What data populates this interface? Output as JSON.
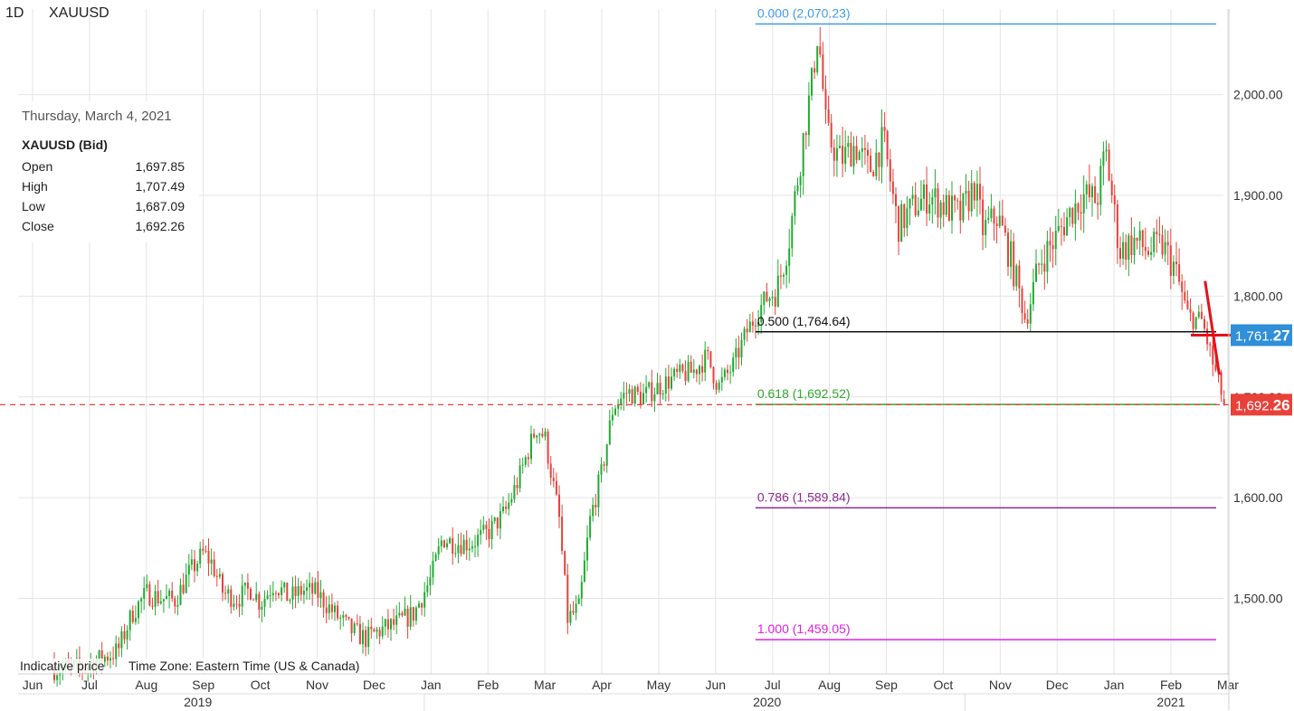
{
  "header": {
    "timeframe": "1D",
    "symbol": "XAUUSD"
  },
  "tooltip": {
    "date": "Thursday, March 4, 2021",
    "symbol": "XAUUSD (Bid)",
    "rows": [
      {
        "label": "Open",
        "value": "1,697.85"
      },
      {
        "label": "High",
        "value": "1,707.49"
      },
      {
        "label": "Low",
        "value": "1,687.09"
      },
      {
        "label": "Close",
        "value": "1,692.26"
      }
    ]
  },
  "footer": {
    "note": "Indicative price",
    "timezone": "Time Zone: Eastern Time (US & Canada)"
  },
  "price_badges": [
    {
      "main": "1,761.",
      "tail": "27",
      "value": 1761.27,
      "color": "#2f8fd8"
    },
    {
      "main": "1,692.",
      "tail": "26",
      "value": 1692.26,
      "color": "#e8413a"
    }
  ],
  "colors": {
    "up": "#22aa33",
    "down": "#e8413a",
    "grid": "#e4e4e4",
    "axis_text": "#333333"
  },
  "chart_data": {
    "type": "candlestick",
    "x_axis": {
      "months": [
        "Jun",
        "Jul",
        "Aug",
        "Sep",
        "Oct",
        "Nov",
        "Dec",
        "Jan",
        "Feb",
        "Mar",
        "Apr",
        "May",
        "Jun",
        "Jul",
        "Aug",
        "Sep",
        "Oct",
        "Nov",
        "Dec",
        "Jan",
        "Feb",
        "Mar"
      ],
      "years": [
        {
          "label": "2019",
          "month_index": 3
        },
        {
          "label": "2020",
          "month_index": 13
        },
        {
          "label": "2021",
          "month_index": 20
        }
      ],
      "range": [
        "2019-06",
        "2021-03"
      ]
    },
    "y_axis": {
      "ticks": [
        "1,500.00",
        "1,600.00",
        "1,700.00",
        "1,800.00",
        "1,900.00",
        "2,000.00"
      ],
      "tick_values": [
        1500,
        1600,
        1700,
        1800,
        1900,
        2000
      ],
      "ylim": [
        1425,
        2085
      ]
    },
    "fib_levels": [
      {
        "ratio": "0.000",
        "label": "0.000 (2,070.23)",
        "value": 2070.23,
        "color": "#3d9be9"
      },
      {
        "ratio": "0.500",
        "label": "0.500 (1,764.64)",
        "value": 1764.64,
        "color": "#111111"
      },
      {
        "ratio": "0.618",
        "label": "0.618 (1,692.52)",
        "value": 1692.52,
        "color": "#2fa82f"
      },
      {
        "ratio": "0.786",
        "label": "0.786 (1,589.84)",
        "value": 1589.84,
        "color": "#8e2a8e"
      },
      {
        "ratio": "1.000",
        "label": "1.000 (1,459.05)",
        "value": 1459.05,
        "color": "#e020e0"
      }
    ],
    "current_price": 1692.26,
    "trend_path": [
      {
        "month": 20.6,
        "price": 1815
      },
      {
        "month": 20.85,
        "price": 1722
      }
    ],
    "trend_horizontal": [
      {
        "month": 20.35,
        "price": 1761.27
      },
      {
        "month": 21.0,
        "price": 1761.27
      }
    ],
    "close_path": [
      [
        0.0,
        1435
      ],
      [
        0.4,
        1430
      ],
      [
        0.9,
        1432
      ],
      [
        1.2,
        1440
      ],
      [
        1.5,
        1448
      ],
      [
        1.75,
        1485
      ],
      [
        2.0,
        1505
      ],
      [
        2.25,
        1500
      ],
      [
        2.5,
        1498
      ],
      [
        2.75,
        1525
      ],
      [
        3.0,
        1545
      ],
      [
        3.15,
        1535
      ],
      [
        3.35,
        1505
      ],
      [
        3.6,
        1500
      ],
      [
        3.85,
        1510
      ],
      [
        4.0,
        1495
      ],
      [
        4.25,
        1515
      ],
      [
        4.5,
        1500
      ],
      [
        4.75,
        1508
      ],
      [
        5.0,
        1505
      ],
      [
        5.3,
        1485
      ],
      [
        5.6,
        1468
      ],
      [
        5.85,
        1460
      ],
      [
        6.1,
        1468
      ],
      [
        6.4,
        1475
      ],
      [
        6.7,
        1485
      ],
      [
        7.0,
        1520
      ],
      [
        7.2,
        1560
      ],
      [
        7.4,
        1555
      ],
      [
        7.7,
        1555
      ],
      [
        8.0,
        1565
      ],
      [
        8.3,
        1585
      ],
      [
        8.55,
        1620
      ],
      [
        8.85,
        1670
      ],
      [
        9.0,
        1660
      ],
      [
        9.25,
        1580
      ],
      [
        9.4,
        1480
      ],
      [
        9.6,
        1490
      ],
      [
        9.8,
        1580
      ],
      [
        10.0,
        1625
      ],
      [
        10.2,
        1690
      ],
      [
        10.45,
        1705
      ],
      [
        10.7,
        1700
      ],
      [
        11.0,
        1710
      ],
      [
        11.3,
        1720
      ],
      [
        11.6,
        1725
      ],
      [
        11.85,
        1740
      ],
      [
        12.05,
        1710
      ],
      [
        12.3,
        1730
      ],
      [
        12.55,
        1765
      ],
      [
        12.85,
        1795
      ],
      [
        13.1,
        1810
      ],
      [
        13.3,
        1860
      ],
      [
        13.55,
        1960
      ],
      [
        13.7,
        2015
      ],
      [
        13.8,
        2065
      ],
      [
        13.95,
        1960
      ],
      [
        14.2,
        1935
      ],
      [
        14.45,
        1950
      ],
      [
        14.7,
        1925
      ],
      [
        14.95,
        1955
      ],
      [
        15.2,
        1870
      ],
      [
        15.5,
        1890
      ],
      [
        15.75,
        1900
      ],
      [
        16.0,
        1890
      ],
      [
        16.3,
        1880
      ],
      [
        16.55,
        1910
      ],
      [
        16.7,
        1865
      ],
      [
        16.95,
        1880
      ],
      [
        17.2,
        1835
      ],
      [
        17.45,
        1775
      ],
      [
        17.7,
        1835
      ],
      [
        17.95,
        1855
      ],
      [
        18.2,
        1880
      ],
      [
        18.45,
        1900
      ],
      [
        18.7,
        1895
      ],
      [
        18.85,
        1945
      ],
      [
        19.1,
        1845
      ],
      [
        19.35,
        1855
      ],
      [
        19.6,
        1845
      ],
      [
        19.85,
        1850
      ],
      [
        20.05,
        1830
      ],
      [
        20.3,
        1780
      ],
      [
        20.55,
        1775
      ],
      [
        20.75,
        1730
      ],
      [
        20.95,
        1692.26
      ]
    ],
    "last_candle": {
      "date": "Thursday, March 4, 2021",
      "open": 1697.85,
      "high": 1707.49,
      "low": 1687.09,
      "close": 1692.26
    }
  }
}
